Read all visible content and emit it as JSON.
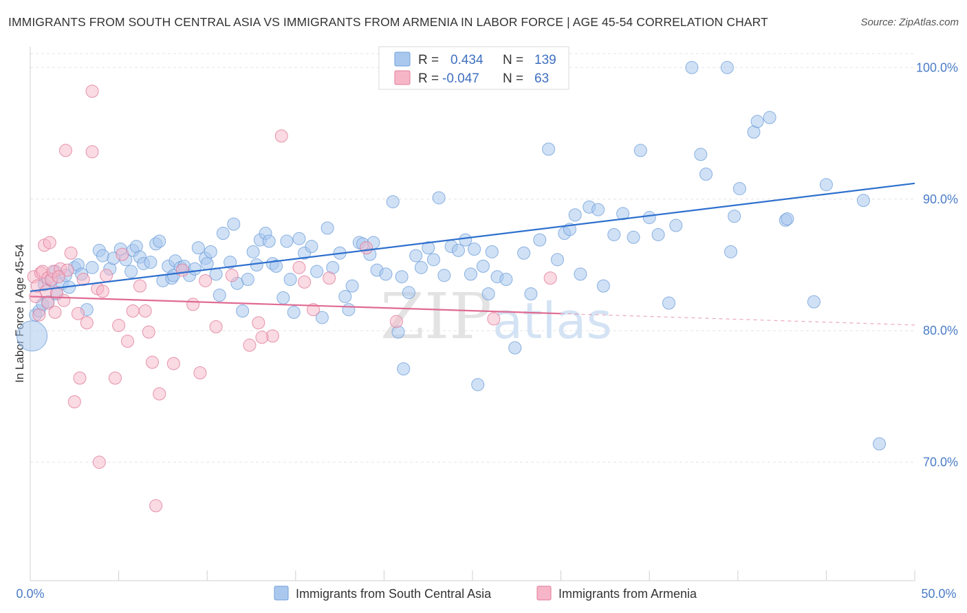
{
  "title": "IMMIGRANTS FROM SOUTH CENTRAL ASIA VS IMMIGRANTS FROM ARMENIA IN LABOR FORCE | AGE 45-54 CORRELATION CHART",
  "source": "Source: ZipAtlas.com",
  "watermark": {
    "zip": "ZIP",
    "atlas": "atlas"
  },
  "legend": {
    "r_label": "R =",
    "n_label": "N =",
    "rows": [
      {
        "r": "0.434",
        "n": "139",
        "color": "#aac8ee"
      },
      {
        "r": "-0.047",
        "n": "63",
        "color": "#f6b6c8"
      }
    ]
  },
  "bottom_legend": [
    "Immigrants from South Central Asia",
    "Immigrants from Armenia"
  ],
  "chart_data": {
    "type": "scatter",
    "ylabel": "In Labor Force | Age 45-54",
    "xlim": [
      0,
      50
    ],
    "ylim": [
      61,
      102
    ],
    "x_tick_labels": [
      {
        "v": 0,
        "label": "0.0%"
      },
      {
        "v": 50,
        "label": "50.0%"
      }
    ],
    "x_minor_ticks": [
      5,
      10,
      15,
      20,
      25,
      30,
      35,
      40,
      45
    ],
    "y_ticks": [
      {
        "v": 100,
        "label": "100.0%"
      },
      {
        "v": 90,
        "label": "90.0%"
      },
      {
        "v": 80,
        "label": "80.0%"
      },
      {
        "v": 70,
        "label": "70.0%"
      }
    ],
    "grid": true,
    "series": [
      {
        "name": "Immigrants from South Central Asia",
        "color": "#aac8ee",
        "stroke": "#6f9fd8",
        "trend": {
          "x": [
            0,
            50
          ],
          "y": [
            83.0,
            91.2
          ],
          "color": "#2e6fce"
        },
        "points": [
          [
            0.1,
            79.6
          ],
          [
            0.3,
            81.2
          ],
          [
            0.5,
            81.5
          ],
          [
            0.7,
            82.0
          ],
          [
            0.8,
            83.5
          ],
          [
            1.0,
            82.2
          ],
          [
            1.2,
            83.8
          ],
          [
            1.4,
            84.5
          ],
          [
            1.5,
            82.8
          ],
          [
            1.8,
            83.6
          ],
          [
            2.0,
            84.2
          ],
          [
            2.2,
            83.3
          ],
          [
            2.5,
            84.8
          ],
          [
            2.7,
            85.0
          ],
          [
            2.9,
            84.3
          ],
          [
            3.2,
            81.6
          ],
          [
            3.5,
            84.8
          ],
          [
            3.9,
            86.1
          ],
          [
            4.1,
            85.7
          ],
          [
            4.5,
            84.7
          ],
          [
            4.7,
            85.5
          ],
          [
            5.1,
            86.2
          ],
          [
            5.4,
            85.4
          ],
          [
            5.7,
            84.5
          ],
          [
            5.8,
            86.1
          ],
          [
            6.0,
            86.4
          ],
          [
            6.2,
            85.6
          ],
          [
            6.4,
            85.1
          ],
          [
            6.8,
            85.2
          ],
          [
            7.1,
            86.6
          ],
          [
            7.3,
            86.8
          ],
          [
            7.5,
            83.8
          ],
          [
            7.8,
            84.9
          ],
          [
            8.0,
            84.0
          ],
          [
            8.2,
            85.3
          ],
          [
            8.5,
            84.8
          ],
          [
            8.7,
            84.9
          ],
          [
            9.0,
            84.2
          ],
          [
            9.3,
            84.7
          ],
          [
            9.5,
            86.3
          ],
          [
            9.9,
            85.5
          ],
          [
            10.2,
            86.0
          ],
          [
            10.5,
            84.3
          ],
          [
            10.7,
            82.7
          ],
          [
            10.9,
            87.4
          ],
          [
            11.3,
            85.2
          ],
          [
            11.5,
            88.1
          ],
          [
            11.7,
            83.6
          ],
          [
            12.0,
            81.5
          ],
          [
            12.3,
            83.9
          ],
          [
            12.6,
            86.0
          ],
          [
            12.8,
            85.0
          ],
          [
            13.0,
            86.9
          ],
          [
            13.3,
            87.4
          ],
          [
            13.5,
            86.8
          ],
          [
            13.7,
            85.1
          ],
          [
            13.9,
            84.9
          ],
          [
            14.3,
            82.5
          ],
          [
            14.5,
            86.8
          ],
          [
            14.7,
            83.9
          ],
          [
            14.9,
            81.4
          ],
          [
            15.2,
            87.0
          ],
          [
            15.5,
            85.9
          ],
          [
            15.9,
            86.4
          ],
          [
            16.2,
            84.5
          ],
          [
            16.5,
            81.0
          ],
          [
            16.8,
            87.8
          ],
          [
            17.1,
            84.8
          ],
          [
            17.5,
            85.9
          ],
          [
            17.8,
            82.6
          ],
          [
            18.0,
            81.6
          ],
          [
            18.2,
            83.4
          ],
          [
            18.6,
            86.7
          ],
          [
            18.8,
            86.6
          ],
          [
            19.2,
            85.8
          ],
          [
            19.4,
            86.7
          ],
          [
            19.6,
            84.6
          ],
          [
            20.1,
            84.3
          ],
          [
            20.5,
            89.8
          ],
          [
            20.8,
            79.9
          ],
          [
            21.1,
            77.1
          ],
          [
            21.4,
            82.9
          ],
          [
            21.8,
            85.7
          ],
          [
            22.1,
            84.8
          ],
          [
            22.5,
            86.3
          ],
          [
            22.8,
            85.4
          ],
          [
            23.1,
            90.1
          ],
          [
            23.4,
            84.2
          ],
          [
            23.8,
            86.4
          ],
          [
            24.2,
            86.1
          ],
          [
            24.6,
            86.9
          ],
          [
            24.9,
            84.3
          ],
          [
            25.3,
            75.9
          ],
          [
            25.6,
            84.9
          ],
          [
            25.9,
            82.8
          ],
          [
            26.1,
            86.0
          ],
          [
            26.4,
            84.1
          ],
          [
            26.9,
            83.9
          ],
          [
            27.4,
            78.7
          ],
          [
            27.9,
            85.9
          ],
          [
            28.3,
            82.8
          ],
          [
            28.8,
            86.9
          ],
          [
            29.3,
            93.8
          ],
          [
            29.8,
            85.4
          ],
          [
            30.2,
            87.4
          ],
          [
            30.5,
            87.7
          ],
          [
            30.8,
            88.8
          ],
          [
            31.1,
            84.3
          ],
          [
            31.6,
            89.4
          ],
          [
            32.1,
            89.2
          ],
          [
            32.4,
            83.4
          ],
          [
            33.0,
            87.3
          ],
          [
            33.5,
            88.9
          ],
          [
            34.1,
            87.1
          ],
          [
            34.5,
            93.7
          ],
          [
            35.0,
            88.6
          ],
          [
            35.5,
            87.3
          ],
          [
            36.1,
            82.1
          ],
          [
            36.5,
            88.0
          ],
          [
            37.4,
            100.0
          ],
          [
            37.9,
            93.4
          ],
          [
            38.2,
            91.9
          ],
          [
            39.4,
            100.0
          ],
          [
            39.6,
            86.0
          ],
          [
            39.8,
            88.7
          ],
          [
            40.1,
            90.8
          ],
          [
            40.9,
            95.1
          ],
          [
            41.1,
            95.9
          ],
          [
            41.8,
            96.2
          ],
          [
            42.7,
            88.4
          ],
          [
            42.8,
            88.5
          ],
          [
            44.3,
            82.2
          ],
          [
            45.0,
            91.1
          ],
          [
            47.1,
            89.9
          ],
          [
            48.0,
            71.4
          ],
          [
            25.1,
            86.2
          ],
          [
            8.1,
            84.2
          ],
          [
            10.0,
            85.1
          ],
          [
            21.0,
            84.1
          ]
        ]
      },
      {
        "name": "Immigrants from Armenia",
        "color": "#f6b6c8",
        "stroke": "#e07a98",
        "trend": {
          "x": [
            0,
            30
          ],
          "y": [
            82.6,
            81.3
          ],
          "color": "#e06a92"
        },
        "points": [
          [
            0.2,
            84.1
          ],
          [
            0.3,
            82.6
          ],
          [
            0.4,
            83.4
          ],
          [
            0.5,
            81.2
          ],
          [
            0.6,
            84.4
          ],
          [
            0.7,
            84.5
          ],
          [
            0.8,
            86.5
          ],
          [
            0.9,
            83.0
          ],
          [
            1.0,
            82.1
          ],
          [
            1.0,
            84.0
          ],
          [
            1.1,
            86.7
          ],
          [
            1.2,
            83.9
          ],
          [
            1.3,
            84.5
          ],
          [
            1.4,
            81.4
          ],
          [
            1.5,
            82.9
          ],
          [
            1.7,
            84.7
          ],
          [
            1.9,
            82.3
          ],
          [
            2.0,
            93.7
          ],
          [
            2.1,
            84.6
          ],
          [
            2.3,
            85.9
          ],
          [
            2.5,
            74.6
          ],
          [
            2.7,
            81.3
          ],
          [
            2.8,
            76.4
          ],
          [
            3.0,
            83.9
          ],
          [
            3.2,
            80.6
          ],
          [
            3.5,
            93.6
          ],
          [
            3.5,
            98.2
          ],
          [
            3.8,
            83.2
          ],
          [
            3.9,
            70.0
          ],
          [
            4.1,
            83.0
          ],
          [
            4.3,
            84.2
          ],
          [
            4.8,
            76.4
          ],
          [
            5.0,
            80.4
          ],
          [
            5.2,
            85.8
          ],
          [
            5.5,
            79.2
          ],
          [
            5.8,
            81.5
          ],
          [
            6.2,
            83.4
          ],
          [
            6.5,
            81.5
          ],
          [
            6.7,
            79.9
          ],
          [
            6.9,
            77.6
          ],
          [
            7.1,
            66.7
          ],
          [
            7.3,
            75.2
          ],
          [
            8.1,
            77.5
          ],
          [
            8.6,
            84.6
          ],
          [
            9.2,
            82.0
          ],
          [
            9.6,
            76.8
          ],
          [
            9.9,
            83.8
          ],
          [
            10.5,
            80.3
          ],
          [
            11.4,
            84.2
          ],
          [
            12.4,
            78.9
          ],
          [
            12.9,
            80.6
          ],
          [
            13.7,
            79.6
          ],
          [
            14.2,
            94.8
          ],
          [
            15.2,
            84.8
          ],
          [
            15.5,
            83.7
          ],
          [
            16.0,
            81.6
          ],
          [
            16.9,
            84.0
          ],
          [
            19.0,
            86.3
          ],
          [
            20.7,
            80.7
          ],
          [
            26.2,
            80.9
          ],
          [
            29.4,
            84.0
          ],
          [
            13.1,
            79.5
          ],
          [
            1.6,
            84.1
          ]
        ]
      }
    ]
  }
}
